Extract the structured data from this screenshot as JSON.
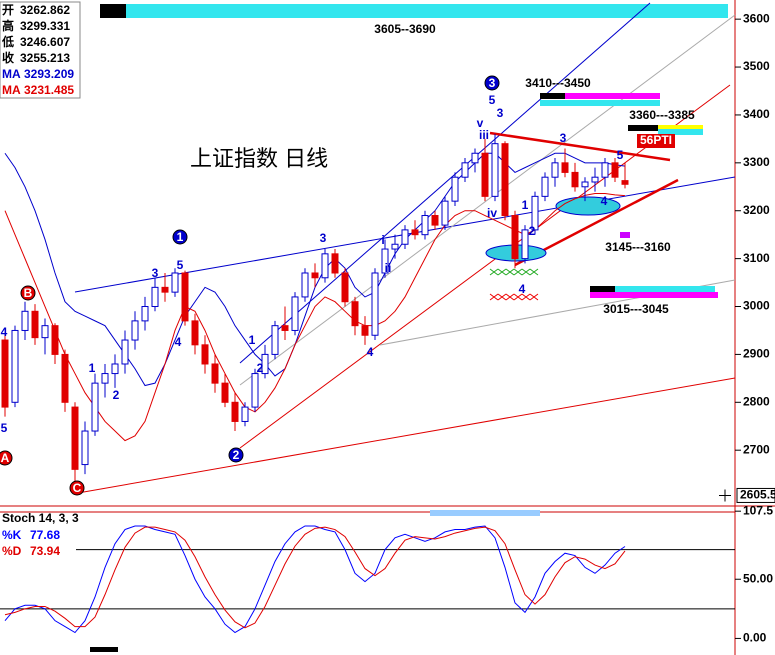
{
  "chart_data": [
    {
      "type": "candlestick",
      "title": "上证指数 日线",
      "ohlc_labels": [
        "开",
        "高",
        "低",
        "收"
      ],
      "open": [
        2930,
        2800,
        2950,
        2990,
        2935,
        2960,
        2900,
        2790,
        2670,
        2740,
        2840,
        2860,
        2880,
        2930,
        2970,
        3000,
        3040,
        3030,
        3070,
        2970,
        2920,
        2880,
        2840,
        2800,
        2760,
        2790,
        2860,
        2900,
        2960,
        2950,
        3020,
        3070,
        3060,
        3110,
        3070,
        3010,
        2960,
        2940,
        3070,
        3120,
        3130,
        3160,
        3150,
        3190,
        3170,
        3220,
        3270,
        3300,
        3320,
        3230,
        3340,
        3190,
        3100,
        3160,
        3230,
        3270,
        3300,
        3280,
        3250,
        3260,
        3270,
        3300,
        3262.862
      ],
      "high": [
        2945,
        2960,
        3010,
        3005,
        2975,
        2965,
        2910,
        2800,
        2760,
        2860,
        2880,
        2900,
        2950,
        2990,
        3020,
        3060,
        3070,
        3080,
        3075,
        2985,
        2940,
        2900,
        2860,
        2820,
        2800,
        2870,
        2920,
        2970,
        3000,
        3030,
        3080,
        3090,
        3120,
        3120,
        3080,
        3020,
        2980,
        3080,
        3140,
        3150,
        3170,
        3180,
        3200,
        3200,
        3230,
        3280,
        3310,
        3330,
        3350,
        3360,
        3345,
        3200,
        3170,
        3240,
        3280,
        3310,
        3330,
        3300,
        3270,
        3290,
        3310,
        3310,
        3299.331
      ],
      "low": [
        2770,
        2790,
        2930,
        2920,
        2900,
        2880,
        2780,
        2622,
        2650,
        2730,
        2810,
        2830,
        2860,
        2910,
        2950,
        2990,
        3010,
        3020,
        2960,
        2900,
        2860,
        2820,
        2790,
        2740,
        2750,
        2780,
        2850,
        2890,
        2930,
        2940,
        3010,
        3040,
        3050,
        3060,
        3000,
        2940,
        2920,
        2930,
        3060,
        3100,
        3120,
        3140,
        3140,
        3160,
        3160,
        3210,
        3260,
        3280,
        3220,
        3220,
        3180,
        3080,
        3090,
        3150,
        3220,
        3250,
        3270,
        3240,
        3220,
        3240,
        3250,
        3260,
        3246.607
      ],
      "close": [
        2790,
        2950,
        2990,
        2935,
        2960,
        2900,
        2800,
        2660,
        2740,
        2840,
        2860,
        2880,
        2930,
        2970,
        3000,
        3040,
        3030,
        3070,
        2970,
        2920,
        2880,
        2840,
        2800,
        2760,
        2790,
        2860,
        2900,
        2960,
        2950,
        3020,
        3070,
        3060,
        3110,
        3070,
        3010,
        2960,
        2940,
        3070,
        3120,
        3130,
        3160,
        3150,
        3190,
        3170,
        3220,
        3270,
        3300,
        3320,
        3230,
        3340,
        3190,
        3100,
        3160,
        3230,
        3270,
        3300,
        3280,
        3250,
        3260,
        3270,
        3300,
        3270,
        3255.213
      ],
      "series": [
        {
          "name": "MA",
          "color": "#0000cc",
          "values": [
            3320,
            3290,
            3250,
            3200,
            3140,
            3070,
            3010,
            2990,
            2980,
            2970,
            2960,
            2930,
            2900,
            2870,
            2835,
            2840,
            2880,
            2930,
            2980,
            3010,
            3040,
            3030,
            3000,
            2960,
            2930,
            2900,
            2880,
            2855,
            2870,
            2920,
            2980,
            3040,
            3080,
            3100,
            3080,
            3040,
            3020,
            3030,
            3070,
            3110,
            3140,
            3160,
            3180,
            3200,
            3230,
            3260,
            3280,
            3300,
            3320,
            3320,
            3300,
            3280,
            3290,
            3300,
            3310,
            3320,
            3320,
            3310,
            3300,
            3300,
            3300,
            3296,
            3293.209
          ]
        },
        {
          "name": "MA",
          "color": "#e00000",
          "values": [
            3200,
            3150,
            3100,
            3050,
            3000,
            2950,
            2900,
            2860,
            2820,
            2790,
            2760,
            2740,
            2720,
            2730,
            2760,
            2820,
            2880,
            2950,
            3000,
            2990,
            2950,
            2900,
            2860,
            2820,
            2790,
            2780,
            2800,
            2830,
            2870,
            2920,
            2960,
            3000,
            3020,
            3010,
            2990,
            2970,
            2960,
            2960,
            2970,
            2990,
            3020,
            3060,
            3100,
            3140,
            3170,
            3190,
            3200,
            3200,
            3190,
            3180,
            3170,
            3160,
            3150,
            3160,
            3180,
            3200,
            3215,
            3225,
            3232,
            3236,
            3236,
            3233,
            3231.485
          ]
        }
      ],
      "up_color": "#0000cc",
      "down_color": "#e00000",
      "ylim": [
        2596,
        3640
      ],
      "yticks": [
        2700,
        2800,
        2900,
        3000,
        3100,
        3200,
        3300,
        3400,
        3500,
        3600
      ],
      "cursor_value": 2605.5,
      "annotations": [
        "3605--3690",
        "3410---3450",
        "3360---3385",
        "3145---3160",
        "3015---3045",
        "56PTI"
      ],
      "wave_labels": [
        "B",
        "A",
        "C",
        "1",
        "2",
        "3",
        "4",
        "5",
        "1",
        "2",
        "3",
        "5",
        "4",
        "1",
        "2",
        "3",
        "4",
        "i",
        "ii",
        "5",
        "3",
        "v",
        "iii",
        "iv",
        "1",
        "2",
        "4",
        "3",
        "4",
        "5"
      ]
    },
    {
      "type": "line",
      "title": "Stoch 14, 3, 3",
      "series": [
        {
          "name": "%K",
          "color": "#0000ff",
          "values": [
            15,
            25,
            28,
            28,
            25,
            15,
            10,
            5,
            15,
            35,
            60,
            80,
            92,
            95,
            95,
            92,
            90,
            88,
            70,
            50,
            35,
            25,
            12,
            5,
            10,
            25,
            45,
            65,
            80,
            90,
            95,
            95,
            92,
            90,
            75,
            55,
            48,
            55,
            75,
            85,
            88,
            85,
            82,
            85,
            90,
            92,
            92,
            94,
            95,
            85,
            60,
            30,
            22,
            35,
            55,
            65,
            72,
            70,
            60,
            55,
            62,
            72,
            77.68
          ]
        },
        {
          "name": "%D",
          "color": "#e00000",
          "values": [
            20,
            22,
            25,
            27,
            27,
            23,
            17,
            10,
            10,
            18,
            37,
            58,
            77,
            89,
            94,
            94,
            92,
            90,
            83,
            69,
            52,
            37,
            24,
            14,
            9,
            13,
            27,
            45,
            63,
            78,
            88,
            93,
            94,
            92,
            86,
            73,
            59,
            53,
            59,
            72,
            83,
            86,
            85,
            84,
            86,
            89,
            91,
            93,
            94,
            91,
            80,
            58,
            37,
            29,
            37,
            52,
            64,
            69,
            67,
            62,
            59,
            63,
            73.94
          ]
        }
      ],
      "ylim": [
        -14,
        108.5
      ],
      "yticks": [
        0,
        50,
        107.5
      ],
      "ytick_labels": [
        "0.00",
        "50.00",
        "107.5"
      ],
      "hlines": [
        75,
        25
      ]
    }
  ]
}
